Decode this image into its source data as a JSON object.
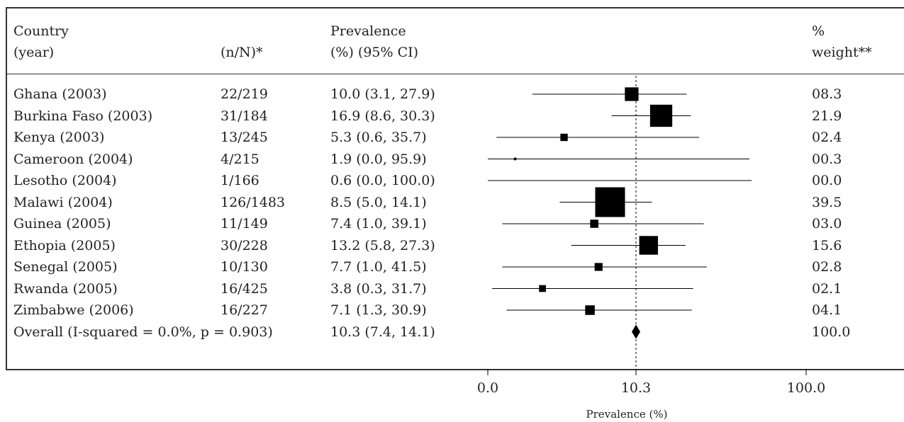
{
  "headers": {
    "country_line1": "Country",
    "country_line2": "(year)",
    "nN": "(n/N)*",
    "prev_line1": "Prevalence",
    "prev_line2": "(%) (95% CI)",
    "weight_line1": "%",
    "weight_line2": "weight**"
  },
  "rows": [
    {
      "study": "Ghana (2003)",
      "nN": "22/219",
      "ci_text": "10.0 (3.1, 27.9)",
      "weight": "08.3"
    },
    {
      "study": "Burkina Faso (2003)",
      "nN": "31/184",
      "ci_text": "16.9 (8.6, 30.3)",
      "weight": "21.9"
    },
    {
      "study": "Kenya (2003)",
      "nN": "13/245",
      "ci_text": "5.3 (0.6, 35.7)",
      "weight": "02.4"
    },
    {
      "study": "Cameroon (2004)",
      "nN": "4/215",
      "ci_text": "1.9 (0.0, 95.9)",
      "weight": "00.3"
    },
    {
      "study": "Lesotho (2004)",
      "nN": "1/166",
      "ci_text": "0.6 (0.0, 100.0)",
      "weight": "00.0"
    },
    {
      "study": "Malawi (2004)",
      "nN": "126/1483",
      "ci_text": "8.5 (5.0, 14.1)",
      "weight": "39.5"
    },
    {
      "study": "Guinea (2005)",
      "nN": "11/149",
      "ci_text": "7.4 (1.0, 39.1)",
      "weight": "03.0"
    },
    {
      "study": "Ethopia (2005)",
      "nN": "30/228",
      "ci_text": "13.2 (5.8, 27.3)",
      "weight": "15.6"
    },
    {
      "study": "Senegal (2005)",
      "nN": "10/130",
      "ci_text": "7.7 (1.0, 41.5)",
      "weight": "02.8"
    },
    {
      "study": "Rwanda (2005)",
      "nN": "16/425",
      "ci_text": "3.8 (0.3, 31.7)",
      "weight": "02.1"
    },
    {
      "study": "Zimbabwe (2006)",
      "nN": "16/227",
      "ci_text": "7.1 (1.3, 30.9)",
      "weight": "04.1"
    }
  ],
  "overall": {
    "label": "Overall  (I-squared = 0.0%, p = 0.903)",
    "ci_text": "10.3 (7.4, 14.1)",
    "weight": "100.0"
  },
  "chart_data": {
    "type": "forest",
    "xlabel": "Prevalence (%)",
    "xticks": [
      "0.0",
      "10.3",
      "100.0"
    ],
    "reference_line": 10.3,
    "studies": [
      {
        "name": "Ghana (2003)",
        "estimate": 10.0,
        "lower": 3.1,
        "upper": 27.9,
        "weight": 8.3
      },
      {
        "name": "Burkina Faso (2003)",
        "estimate": 16.9,
        "lower": 8.6,
        "upper": 30.3,
        "weight": 21.9
      },
      {
        "name": "Kenya (2003)",
        "estimate": 5.3,
        "lower": 0.6,
        "upper": 35.7,
        "weight": 2.4
      },
      {
        "name": "Cameroon (2004)",
        "estimate": 1.9,
        "lower": 0.0,
        "upper": 95.9,
        "weight": 0.3
      },
      {
        "name": "Lesotho (2004)",
        "estimate": 0.6,
        "lower": 0.0,
        "upper": 100.0,
        "weight": 0.0
      },
      {
        "name": "Malawi (2004)",
        "estimate": 8.5,
        "lower": 5.0,
        "upper": 14.1,
        "weight": 39.5
      },
      {
        "name": "Guinea (2005)",
        "estimate": 7.4,
        "lower": 1.0,
        "upper": 39.1,
        "weight": 3.0
      },
      {
        "name": "Ethopia (2005)",
        "estimate": 13.2,
        "lower": 5.8,
        "upper": 27.3,
        "weight": 15.6
      },
      {
        "name": "Senegal (2005)",
        "estimate": 7.7,
        "lower": 1.0,
        "upper": 41.5,
        "weight": 2.8
      },
      {
        "name": "Rwanda (2005)",
        "estimate": 3.8,
        "lower": 0.3,
        "upper": 31.7,
        "weight": 2.1
      },
      {
        "name": "Zimbabwe (2006)",
        "estimate": 7.1,
        "lower": 1.3,
        "upper": 30.9,
        "weight": 4.1
      }
    ],
    "overall": {
      "estimate": 10.3,
      "lower": 7.4,
      "upper": 14.1,
      "weight": 100.0
    },
    "line_color": "#000000",
    "marker_color": "#000000"
  }
}
